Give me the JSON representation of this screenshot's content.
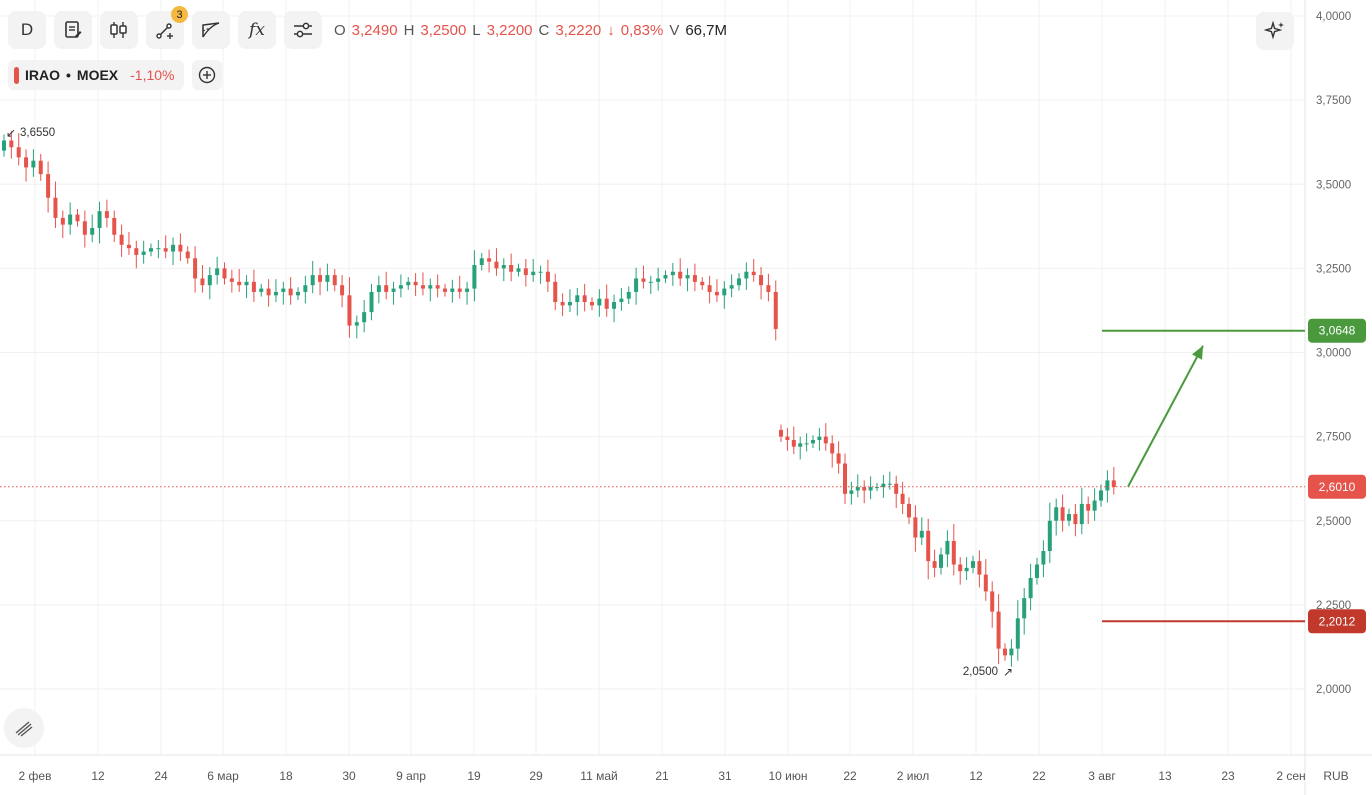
{
  "toolbar": {
    "interval_label": "D",
    "badge_count": "3",
    "fx_label": "fx",
    "icons": [
      "notes-icon",
      "candles-icon",
      "drawing-tools-icon",
      "fibonacci-icon",
      "indicators-icon",
      "settings-icon"
    ]
  },
  "ohlc": {
    "o_label": "O",
    "o_value": "3,2490",
    "h_label": "H",
    "h_value": "3,2500",
    "l_label": "L",
    "l_value": "3,2200",
    "c_label": "C",
    "c_value": "3,2220",
    "change_arrow": "↓",
    "change_value": "0,83%",
    "v_label": "V",
    "v_value": "66,7M"
  },
  "ticker": {
    "symbol": "IRAO",
    "separator": "•",
    "exchange": "MOEX",
    "change": "-1,10%"
  },
  "colors": {
    "up": "#26a17b",
    "down": "#e5534b",
    "target_up": "#4a9a3d",
    "target_down": "#c0392b"
  },
  "chart_data": {
    "type": "candlestick",
    "currency": "RUB",
    "ylim": [
      1.8,
      4.05
    ],
    "y_ticks": [
      "2,0000",
      "2,2500",
      "2,5000",
      "2,7500",
      "3,0000",
      "3,2500",
      "3,5000",
      "3,7500",
      "4,0000"
    ],
    "x_ticks": [
      "2 фев",
      "12",
      "24",
      "6 мар",
      "18",
      "30",
      "9 апр",
      "19",
      "29",
      "11 май",
      "21",
      "31",
      "10 июн",
      "22",
      "2 июл",
      "12",
      "22",
      "3 авг",
      "13",
      "23",
      "2 сен"
    ],
    "candles_part1_close": [
      3.63,
      3.61,
      3.58,
      3.55,
      3.57,
      3.53,
      3.46,
      3.4,
      3.38,
      3.41,
      3.39,
      3.35,
      3.37,
      3.42,
      3.4,
      3.35,
      3.32,
      3.31,
      3.29,
      3.3,
      3.31,
      3.31,
      3.3,
      3.32,
      3.3,
      3.28,
      3.22,
      3.2,
      3.23,
      3.25,
      3.22,
      3.21,
      3.2,
      3.21,
      3.18,
      3.19,
      3.17,
      3.18,
      3.19,
      3.17,
      3.18,
      3.2,
      3.23,
      3.21,
      3.23,
      3.2,
      3.17,
      3.08,
      3.09,
      3.12,
      3.18,
      3.2,
      3.18,
      3.19,
      3.2,
      3.21,
      3.2,
      3.19,
      3.2,
      3.19,
      3.18,
      3.19,
      3.18,
      3.19,
      3.26,
      3.28,
      3.27,
      3.25,
      3.26,
      3.24,
      3.25,
      3.23,
      3.24,
      3.24,
      3.21,
      3.15,
      3.14,
      3.15,
      3.17,
      3.15,
      3.14,
      3.16,
      3.13,
      3.15,
      3.16,
      3.18,
      3.22,
      3.21,
      3.21,
      3.22,
      3.23,
      3.24,
      3.22,
      3.23,
      3.21,
      3.2,
      3.18,
      3.17,
      3.19,
      3.2,
      3.22,
      3.24,
      3.23,
      3.2,
      3.18,
      3.07
    ],
    "candles_part2_close": [
      2.75,
      2.74,
      2.72,
      2.73,
      2.73,
      2.74,
      2.75,
      2.73,
      2.7,
      2.67,
      2.58,
      2.59,
      2.6,
      2.59,
      2.6,
      2.6,
      2.61,
      2.61,
      2.58,
      2.55,
      2.51,
      2.45,
      2.47,
      2.38,
      2.36,
      2.4,
      2.44,
      2.37,
      2.35,
      2.36,
      2.38,
      2.34,
      2.29,
      2.23,
      2.12,
      2.1,
      2.12,
      2.21,
      2.27,
      2.33,
      2.37,
      2.41,
      2.5,
      2.54,
      2.5,
      2.52,
      2.49,
      2.55,
      2.53,
      2.56,
      2.59,
      2.62,
      2.6
    ],
    "max_marker": "3,6550",
    "min_marker": "2,0500",
    "current_price": "2,6010",
    "target_up_label": "3,0648",
    "target_down_label": "2,2012",
    "current_price_value": 2.601,
    "target_up_value": 3.0648,
    "target_down_value": 2.2012,
    "max_value": 3.655,
    "min_value": 2.05
  }
}
